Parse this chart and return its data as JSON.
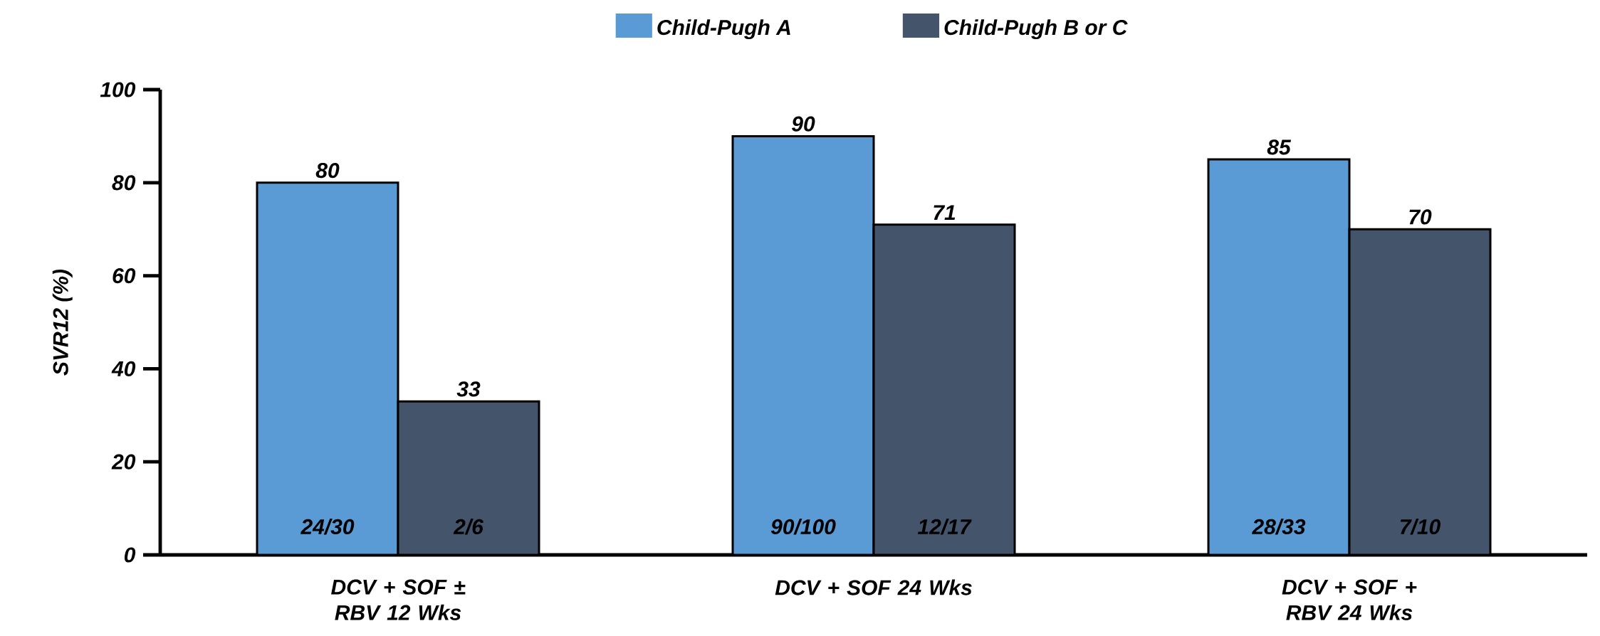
{
  "chart_data": {
    "type": "bar",
    "ylabel": "SVR12 (%)",
    "categories": [
      "DCV + SOF ± RBV 12 Wks",
      "DCV + SOF 24 Wks",
      "DCV + SOF + RBV 24 Wks"
    ],
    "series": [
      {
        "name": "Child-Pugh A",
        "color": "#5b9bd5",
        "values": [
          80,
          90,
          85
        ]
      },
      {
        "name": "Child-Pugh B or C",
        "color": "#44546a",
        "values": [
          33,
          71,
          70
        ]
      }
    ],
    "ylim": [
      0,
      100
    ],
    "yticks": [
      0,
      20,
      40,
      60,
      80,
      100
    ],
    "data_labels": true,
    "legend": "top",
    "annotations": [
      "24/30",
      "2/6",
      "90/100",
      "12/17",
      "28/33",
      "7/10"
    ]
  }
}
